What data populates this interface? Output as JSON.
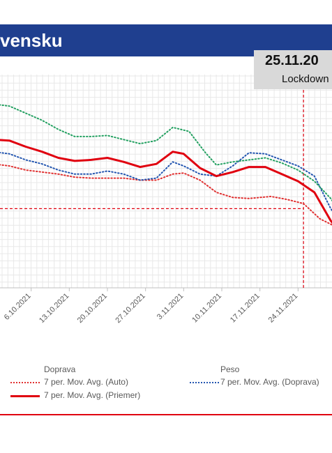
{
  "header": {
    "title": "vensku"
  },
  "lockdown": {
    "date": "25.11.20",
    "label": "Lockdown"
  },
  "legend": {
    "group_left": "Doprava",
    "group_right": "Peso",
    "auto": "7 per. Mov. Avg. (Auto)",
    "doprava": "7 per. Mov. Avg. (Doprava)",
    "priemer": "7 per. Mov. Avg. (Priemer)"
  },
  "colors": {
    "header": "#1f3f8f",
    "auto": "#e03030",
    "doprava": "#2255b0",
    "green": "#22a060",
    "priemer": "#e0000f",
    "ref": "#e0000f"
  },
  "chart_data": {
    "type": "line",
    "x_ticks": [
      "6.10.2021",
      "13.10.2021",
      "20.10.2021",
      "27.10.2021",
      "3.11.2021",
      "10.11.2021",
      "17.11.2021",
      "24.11.2021"
    ],
    "x_range": [
      "2021-09-29",
      "2021-12-01"
    ],
    "grid": true,
    "series": [
      {
        "name": "7 per. Mov. Avg. (Auto)",
        "style": "dotted",
        "color": "#e03030",
        "points": [
          [
            "2021-09-29",
            72
          ],
          [
            "2021-10-02",
            70
          ],
          [
            "2021-10-05",
            66
          ],
          [
            "2021-10-08",
            64
          ],
          [
            "2021-10-11",
            62
          ],
          [
            "2021-10-14",
            59
          ],
          [
            "2021-10-17",
            58
          ],
          [
            "2021-10-20",
            58
          ],
          [
            "2021-10-23",
            58
          ],
          [
            "2021-10-26",
            56
          ],
          [
            "2021-10-29",
            56
          ],
          [
            "2021-11-01",
            62
          ],
          [
            "2021-11-03",
            63
          ],
          [
            "2021-11-06",
            56
          ],
          [
            "2021-11-09",
            44
          ],
          [
            "2021-11-12",
            39
          ],
          [
            "2021-11-15",
            38
          ],
          [
            "2021-11-19",
            40
          ],
          [
            "2021-11-22",
            37
          ],
          [
            "2021-11-25",
            33
          ],
          [
            "2021-11-28",
            18
          ],
          [
            "2021-12-01",
            10
          ]
        ]
      },
      {
        "name": "7 per. Mov. Avg. (Doprava)",
        "style": "dotted",
        "color": "#2255b0",
        "points": [
          [
            "2021-09-29",
            84
          ],
          [
            "2021-10-02",
            82
          ],
          [
            "2021-10-05",
            76
          ],
          [
            "2021-10-08",
            72
          ],
          [
            "2021-10-11",
            66
          ],
          [
            "2021-10-14",
            62
          ],
          [
            "2021-10-17",
            62
          ],
          [
            "2021-10-20",
            65
          ],
          [
            "2021-10-23",
            62
          ],
          [
            "2021-10-26",
            56
          ],
          [
            "2021-10-29",
            58
          ],
          [
            "2021-11-01",
            74
          ],
          [
            "2021-11-03",
            70
          ],
          [
            "2021-11-06",
            62
          ],
          [
            "2021-11-09",
            60
          ],
          [
            "2021-11-12",
            70
          ],
          [
            "2021-11-15",
            83
          ],
          [
            "2021-11-18",
            82
          ],
          [
            "2021-11-21",
            76
          ],
          [
            "2021-11-24",
            70
          ],
          [
            "2021-11-27",
            60
          ],
          [
            "2021-11-30",
            28
          ],
          [
            "2021-12-01",
            20
          ]
        ]
      },
      {
        "name": "",
        "style": "dotted",
        "color": "#22a060",
        "points": [
          [
            "2021-09-29",
            131
          ],
          [
            "2021-10-02",
            129
          ],
          [
            "2021-10-05",
            122
          ],
          [
            "2021-10-08",
            115
          ],
          [
            "2021-10-11",
            106
          ],
          [
            "2021-10-14",
            99
          ],
          [
            "2021-10-17",
            99
          ],
          [
            "2021-10-20",
            100
          ],
          [
            "2021-10-23",
            96
          ],
          [
            "2021-10-26",
            92
          ],
          [
            "2021-10-29",
            95
          ],
          [
            "2021-11-01",
            108
          ],
          [
            "2021-11-04",
            104
          ],
          [
            "2021-11-07",
            83
          ],
          [
            "2021-11-09",
            71
          ],
          [
            "2021-11-12",
            74
          ],
          [
            "2021-11-15",
            76
          ],
          [
            "2021-11-18",
            78
          ],
          [
            "2021-11-21",
            73
          ],
          [
            "2021-11-24",
            66
          ],
          [
            "2021-11-27",
            55
          ],
          [
            "2021-11-30",
            38
          ],
          [
            "2021-12-01",
            30
          ]
        ]
      },
      {
        "name": "7 per. Mov. Avg. (Priemer)",
        "style": "solid",
        "color": "#e0000f",
        "points": [
          [
            "2021-09-29",
            96
          ],
          [
            "2021-10-02",
            95
          ],
          [
            "2021-10-05",
            89
          ],
          [
            "2021-10-08",
            84
          ],
          [
            "2021-10-11",
            78
          ],
          [
            "2021-10-14",
            75
          ],
          [
            "2021-10-17",
            76
          ],
          [
            "2021-10-20",
            78
          ],
          [
            "2021-10-23",
            74
          ],
          [
            "2021-10-26",
            69
          ],
          [
            "2021-10-29",
            72
          ],
          [
            "2021-11-01",
            84
          ],
          [
            "2021-11-03",
            82
          ],
          [
            "2021-11-06",
            68
          ],
          [
            "2021-11-09",
            60
          ],
          [
            "2021-11-12",
            64
          ],
          [
            "2021-11-15",
            69
          ],
          [
            "2021-11-18",
            69
          ],
          [
            "2021-11-21",
            62
          ],
          [
            "2021-11-24",
            55
          ],
          [
            "2021-11-27",
            44
          ],
          [
            "2021-11-30",
            16
          ],
          [
            "2021-12-01",
            10
          ]
        ]
      }
    ],
    "reference": {
      "y": 28,
      "x": "2021-11-25"
    },
    "ylim": [
      -50,
      160
    ]
  }
}
